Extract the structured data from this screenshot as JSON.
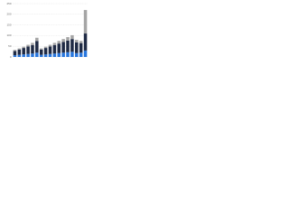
{
  "chart_data": {
    "type": "stacked-bar",
    "categories": [
      null,
      null,
      null,
      null,
      null,
      null,
      null,
      null,
      null,
      null,
      null,
      null,
      null,
      null,
      null,
      null,
      null
    ],
    "series": [
      {
        "color": "#2876dd",
        "values": [
          8,
          10,
          12,
          14,
          16,
          20,
          10,
          12,
          14,
          16,
          18,
          20,
          22,
          24,
          18,
          20,
          30
        ]
      },
      {
        "color": "#1f2a44",
        "values": [
          20,
          25,
          30,
          35,
          40,
          55,
          25,
          30,
          35,
          40,
          45,
          50,
          55,
          60,
          50,
          45,
          80
        ]
      },
      {
        "color": "#a5a5a5",
        "values": [
          5,
          5,
          6,
          8,
          10,
          15,
          5,
          6,
          8,
          10,
          12,
          14,
          16,
          18,
          12,
          10,
          110
        ]
      }
    ],
    "ylim": [
      0,
      250
    ],
    "yticks": [
      0,
      50,
      100,
      150,
      200,
      250
    ],
    "grid": true
  }
}
